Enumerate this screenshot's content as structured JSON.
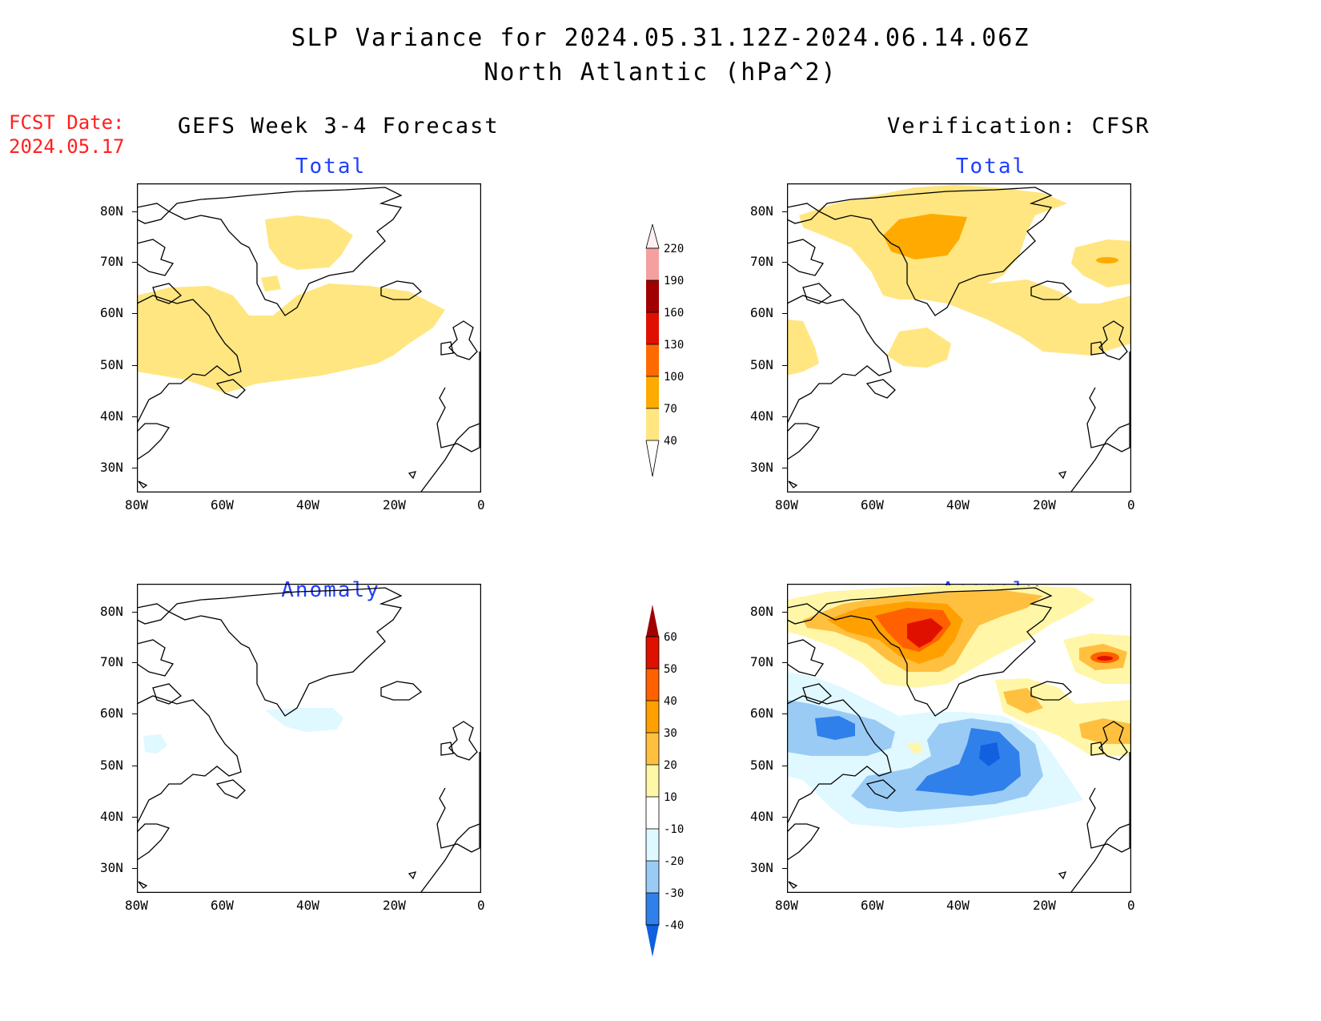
{
  "title": {
    "line1": "SLP Variance for 2024.05.31.12Z-2024.06.14.06Z",
    "line2": "North Atlantic (hPa^2)"
  },
  "fcst": {
    "line1": "FCST Date:",
    "line2": "2024.05.17"
  },
  "columns": {
    "left": "GEFS Week 3-4 Forecast",
    "right": "Verification: CFSR"
  },
  "panels": {
    "total_label": "Total",
    "anomaly_label": "Anomaly"
  },
  "axes": {
    "lat_ticks": [
      "80N",
      "70N",
      "60N",
      "50N",
      "40N",
      "30N"
    ],
    "lon_ticks": [
      "80W",
      "60W",
      "40W",
      "20W",
      "0"
    ]
  },
  "colorbars": {
    "total": {
      "levels": [
        "40",
        "70",
        "100",
        "130",
        "160",
        "190",
        "220"
      ],
      "colors": [
        "#ffe680",
        "#ffaa00",
        "#ff6a00",
        "#e01000",
        "#a00000",
        "#f4a0a0",
        "#fff0f0"
      ]
    },
    "anomaly": {
      "levels": [
        "-40",
        "-30",
        "-20",
        "-10",
        "10",
        "20",
        "30",
        "40",
        "50",
        "60"
      ],
      "colors": [
        "#1060e0",
        "#2f80ea",
        "#9acbf5",
        "#e0f8ff",
        "#ffffff",
        "#fff6a8",
        "#ffc040",
        "#ffa000",
        "#ff6000",
        "#e01000",
        "#a00000"
      ]
    }
  },
  "legend_colors": {
    "c40": "#ffe680",
    "c70": "#ffaa00",
    "a10": "#fff6a8",
    "a20": "#ffc040",
    "a30": "#ffa000",
    "a40": "#ff6000",
    "a50": "#e01000",
    "an10": "#e0f8ff",
    "an20": "#9acbf5",
    "an30": "#2f80ea",
    "an40": "#1060e0"
  }
}
